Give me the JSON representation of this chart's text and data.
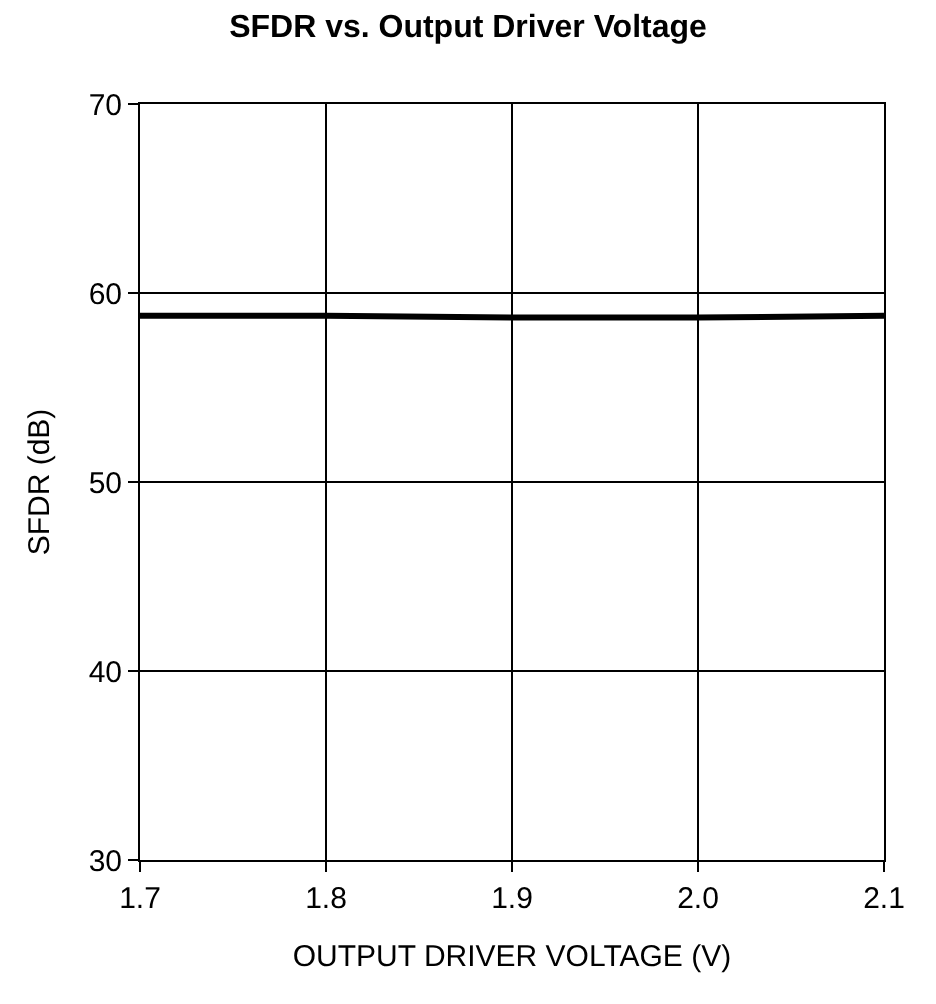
{
  "chart_data": {
    "type": "line",
    "title": "SFDR vs. Output Driver Voltage",
    "xlabel": "OUTPUT DRIVER VOLTAGE (V)",
    "ylabel": "SFDR (dB)",
    "x": [
      1.7,
      1.8,
      1.9,
      2.0,
      2.1
    ],
    "series": [
      {
        "color": "#000000",
        "values": [
          58.8,
          58.8,
          58.7,
          58.7,
          58.8
        ]
      }
    ],
    "xlim": [
      1.7,
      2.1
    ],
    "xticks": [
      {
        "value": 1.7,
        "label": "1.7"
      },
      {
        "value": 1.8,
        "label": "1.8"
      },
      {
        "value": 1.9,
        "label": "1.9"
      },
      {
        "value": 2.0,
        "label": "2.0"
      },
      {
        "value": 2.1,
        "label": "2.1"
      }
    ],
    "ylim": [
      30,
      70
    ],
    "yticks": [
      30,
      40,
      50,
      60,
      70
    ],
    "grid": true,
    "marker": "none",
    "line_style": "solid"
  }
}
